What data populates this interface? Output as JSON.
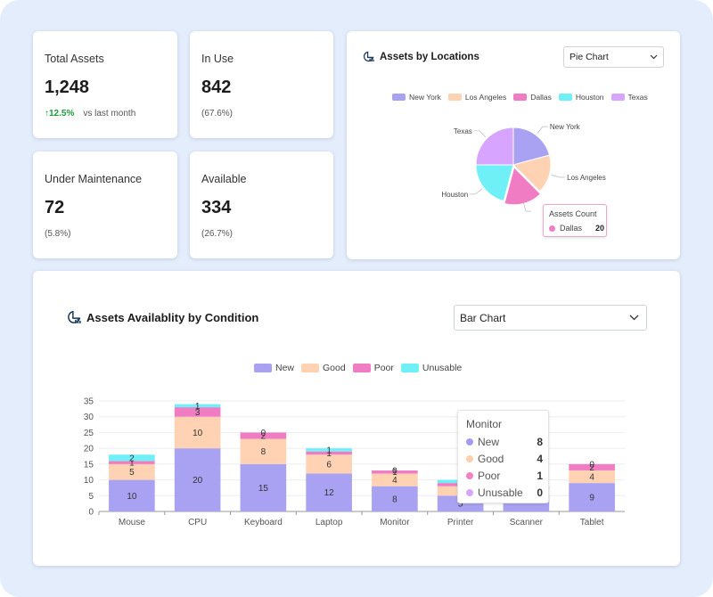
{
  "kpis": [
    {
      "title": "Total Assets",
      "value": "1,248",
      "delta": "12.5%",
      "delta_note": "vs last month"
    },
    {
      "title": "In Use",
      "value": "842",
      "sub": "(67.6%)"
    },
    {
      "title": "Under Maintenance",
      "value": "72",
      "sub": "(5.8%)"
    },
    {
      "title": "Available",
      "value": "334",
      "sub": "(26.7%)"
    }
  ],
  "pie_panel": {
    "title": "Assets by Locations",
    "select_value": "Pie Chart",
    "tooltip": {
      "title": "Assets Count",
      "label": "Dallas",
      "value": "20"
    }
  },
  "bar_panel": {
    "title": "Assets Availablity by Condition",
    "select_value": "Bar Chart",
    "tooltip": {
      "title": "Monitor",
      "rows": [
        {
          "label": "New",
          "value": "8",
          "color": "#a29bf0"
        },
        {
          "label": "Good",
          "value": "4",
          "color": "#ffcfae"
        },
        {
          "label": "Poor",
          "value": "1",
          "color": "#f083c3"
        },
        {
          "label": "Unusable",
          "value": "0",
          "color": "#d9a6ff"
        }
      ]
    }
  },
  "colors": {
    "new": "#a9a2f2",
    "good": "#ffd2b3",
    "poor": "#f07cc3",
    "unusable": "#6ff0f7",
    "texas": "#d7a4ff",
    "accent_up": "#1a9e3a"
  },
  "chart_data": [
    {
      "type": "pie",
      "legend": [
        "New York",
        "Los Angeles",
        "Dallas",
        "Houston",
        "Texas"
      ],
      "labels": [
        "New York",
        "Los Angeles",
        "Dallas",
        "Houston",
        "Texas"
      ],
      "values": [
        25,
        20,
        20,
        25,
        30
      ],
      "colors": [
        "#a9a2f2",
        "#ffd2b3",
        "#f07cc3",
        "#6ff0f7",
        "#d7a4ff"
      ],
      "legend_position": "top"
    },
    {
      "type": "bar",
      "stacked": true,
      "categories": [
        "Mouse",
        "CPU",
        "Keyboard",
        "Laptop",
        "Monitor",
        "Printer",
        "Scanner",
        "Tablet"
      ],
      "series": [
        {
          "name": "New",
          "values": [
            10,
            20,
            15,
            12,
            8,
            5,
            5,
            9
          ],
          "color": "#a9a2f2"
        },
        {
          "name": "Good",
          "values": [
            5,
            10,
            8,
            6,
            4,
            3,
            2,
            4
          ],
          "color": "#ffd2b3"
        },
        {
          "name": "Poor",
          "values": [
            1,
            3,
            2,
            1,
            1,
            1,
            1,
            2
          ],
          "color": "#f07cc3"
        },
        {
          "name": "Unusable",
          "values": [
            2,
            1,
            0,
            1,
            0,
            1,
            0,
            0
          ],
          "color": "#6ff0f7"
        }
      ],
      "data_labels": [
        [
          "10",
          "5",
          "1",
          "2"
        ],
        [
          "20",
          "10",
          "3",
          "1"
        ],
        [
          "15",
          "8",
          "2",
          "0"
        ],
        [
          "12",
          "6",
          "1",
          "1"
        ],
        [
          "8",
          "4",
          "1",
          "0"
        ],
        [
          "5",
          "3",
          "1",
          "1"
        ],
        [
          "",
          "",
          "",
          ""
        ],
        [
          "9",
          "4",
          "2",
          "0"
        ]
      ],
      "y_ticks": [
        "0",
        "5",
        "10",
        "15",
        "20",
        "25",
        "30",
        "35"
      ],
      "ylim": [
        0,
        35
      ],
      "legend_position": "top",
      "grid": true
    }
  ]
}
